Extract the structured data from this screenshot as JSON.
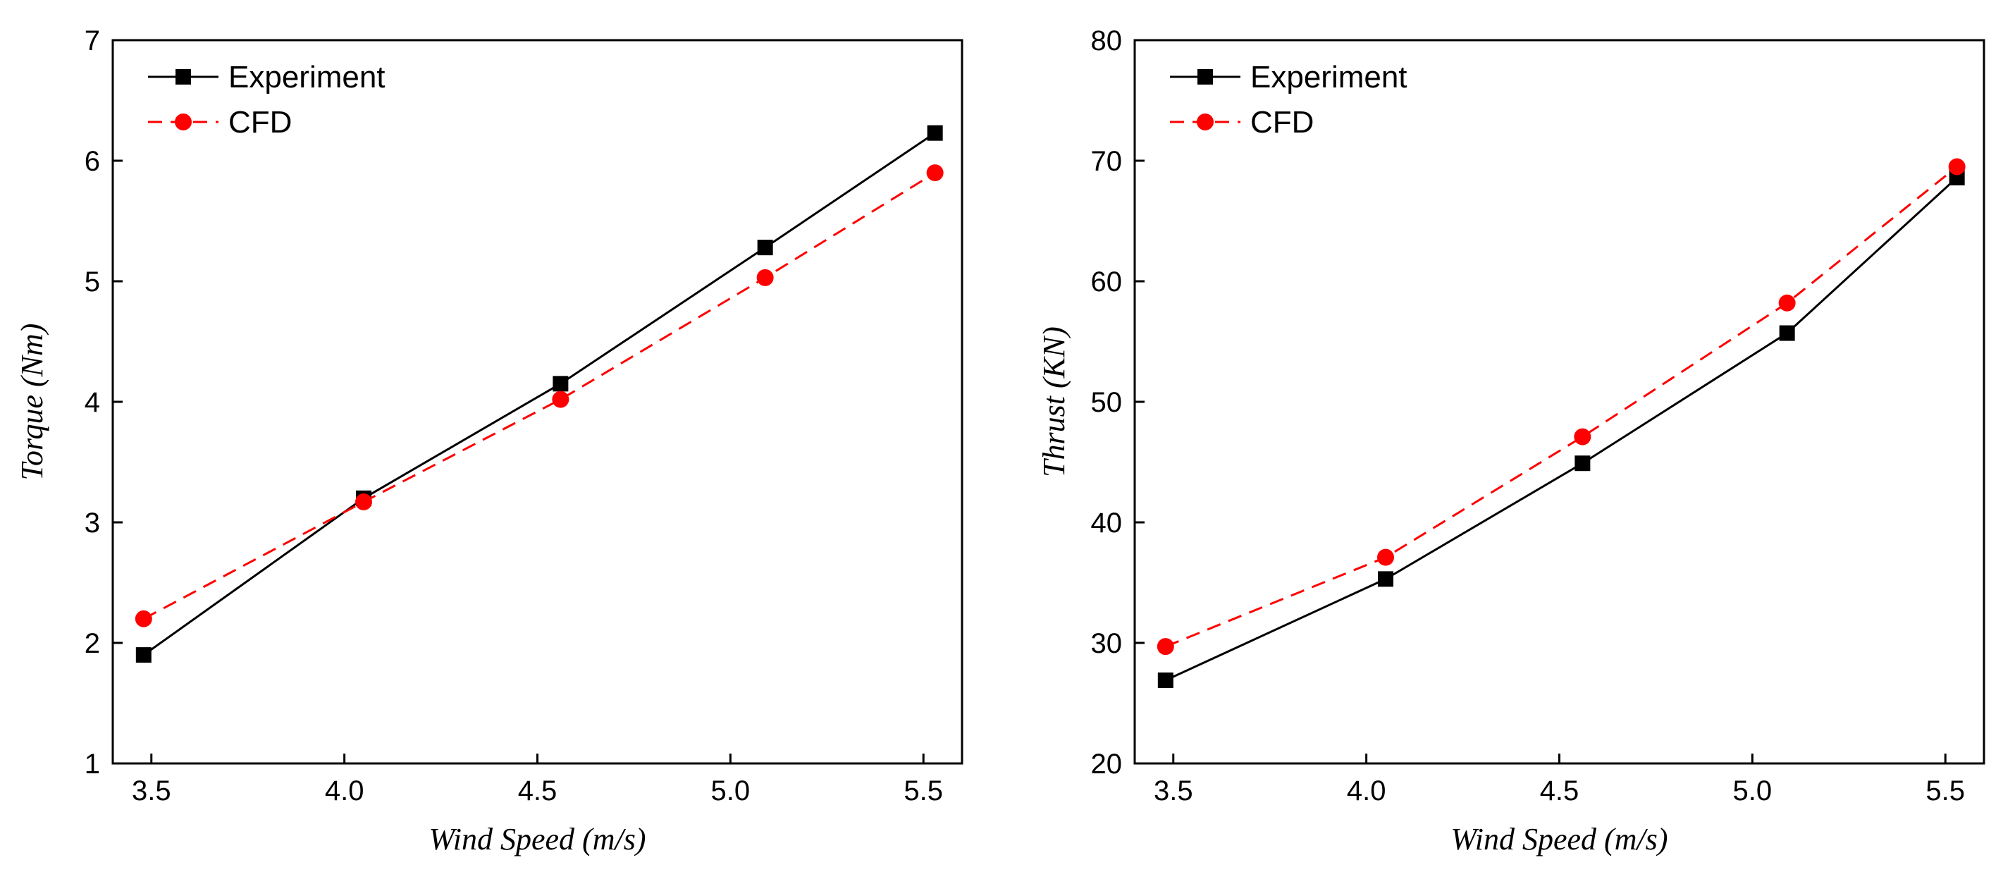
{
  "chart_data": [
    {
      "type": "line",
      "xlabel": "Wind Speed (m/s)",
      "ylabel": "Torque (Nm)",
      "xlim": [
        3.4,
        5.6
      ],
      "ylim": [
        1,
        7
      ],
      "xticks": [
        "3.5",
        "4.0",
        "4.5",
        "5.0",
        "5.5"
      ],
      "xtick_values": [
        3.5,
        4.0,
        4.5,
        5.0,
        5.5
      ],
      "yticks": [
        "1",
        "2",
        "3",
        "4",
        "5",
        "6",
        "7"
      ],
      "ytick_values": [
        1,
        2,
        3,
        4,
        5,
        6,
        7
      ],
      "legend_position": "top-left",
      "series": [
        {
          "name": "Experiment",
          "marker": "square",
          "line": "solid",
          "color": "#000000",
          "x": [
            3.48,
            4.05,
            4.56,
            5.09,
            5.53
          ],
          "values": [
            1.9,
            3.2,
            4.15,
            5.28,
            6.23
          ]
        },
        {
          "name": "CFD",
          "marker": "circle",
          "line": "dashed",
          "color": "#ff0000",
          "x": [
            3.48,
            4.05,
            4.56,
            5.09,
            5.53
          ],
          "values": [
            2.2,
            3.17,
            4.02,
            5.03,
            5.9
          ]
        }
      ]
    },
    {
      "type": "line",
      "xlabel": "Wind Speed (m/s)",
      "ylabel": "Thrust (KN)",
      "xlim": [
        3.4,
        5.6
      ],
      "ylim": [
        20,
        80
      ],
      "xticks": [
        "3.5",
        "4.0",
        "4.5",
        "5.0",
        "5.5"
      ],
      "xtick_values": [
        3.5,
        4.0,
        4.5,
        5.0,
        5.5
      ],
      "yticks": [
        "20",
        "30",
        "40",
        "50",
        "60",
        "70",
        "80"
      ],
      "ytick_values": [
        20,
        30,
        40,
        50,
        60,
        70,
        80
      ],
      "legend_position": "top-left",
      "series": [
        {
          "name": "Experiment",
          "marker": "square",
          "line": "solid",
          "color": "#000000",
          "x": [
            3.48,
            4.05,
            4.56,
            5.09,
            5.53
          ],
          "values": [
            26.9,
            35.3,
            44.9,
            55.7,
            68.6
          ]
        },
        {
          "name": "CFD",
          "marker": "circle",
          "line": "dashed",
          "color": "#ff0000",
          "x": [
            3.48,
            4.05,
            4.56,
            5.09,
            5.53
          ],
          "values": [
            29.7,
            37.1,
            47.1,
            58.2,
            69.5
          ]
        }
      ]
    }
  ]
}
